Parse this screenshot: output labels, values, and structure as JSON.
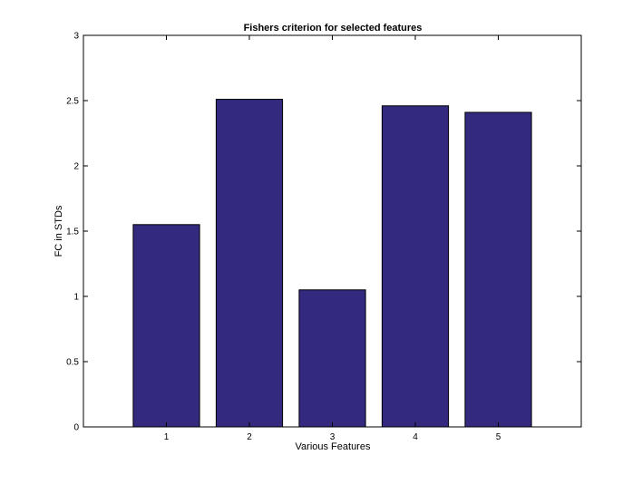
{
  "chart_data": {
    "type": "bar",
    "title": "Fishers criterion for selected features",
    "xlabel": "Various Features",
    "ylabel": "FC in STDs",
    "categories": [
      "1",
      "2",
      "3",
      "4",
      "5"
    ],
    "values": [
      1.55,
      2.51,
      1.05,
      2.46,
      2.41
    ],
    "ylim": [
      0,
      3
    ],
    "yticks": [
      "0",
      "0.5",
      "1",
      "1.5",
      "2",
      "2.5",
      "3"
    ],
    "grid": false,
    "bar_color": "#332a80",
    "bar_edge_color": "#000000"
  }
}
